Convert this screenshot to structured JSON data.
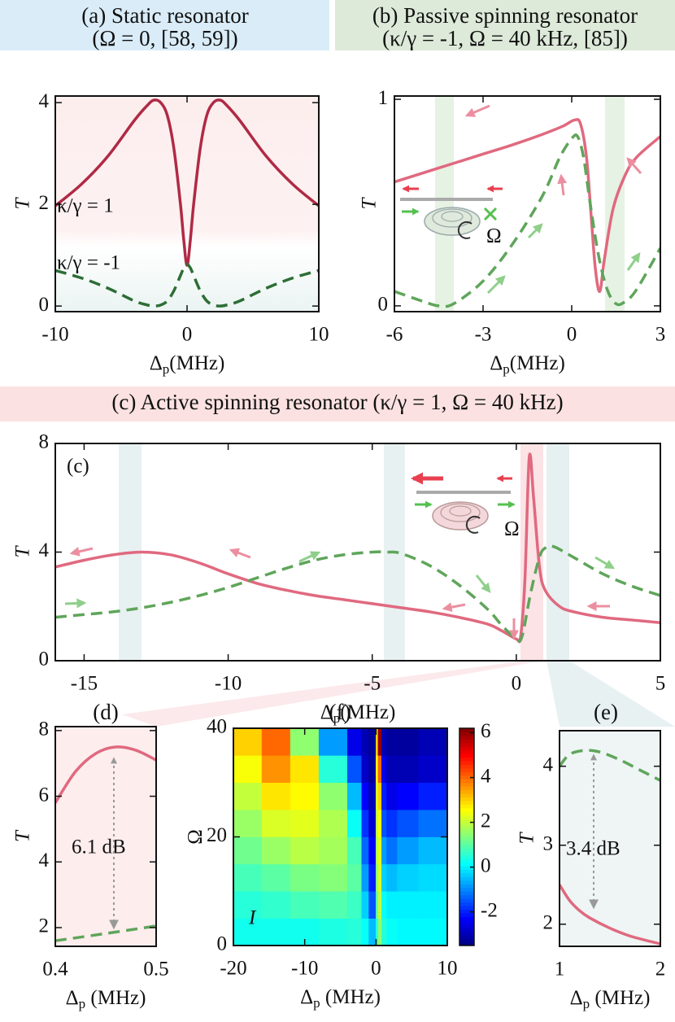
{
  "chart_data": [
    {
      "type": "line",
      "title": "(a) Static resonator",
      "subtitle": "(Ω = 0, [58, 59])",
      "xlabel": [
        "Δ",
        "p",
        "(MHz)"
      ],
      "ylabel": "T",
      "xlim": [
        -10,
        10
      ],
      "ylim": [
        -0.11,
        4.13
      ],
      "xticks": [
        -10,
        0,
        10
      ],
      "yticks": [
        0,
        2,
        4
      ],
      "annotations": [
        "κ/γ = 1",
        "κ/γ = -1"
      ],
      "series": [
        {
          "name": "κ/γ = 1",
          "color": "#b02a45",
          "line_style": "solid",
          "x": [
            -10,
            -8,
            -6,
            -4,
            -3,
            -2.5,
            -2,
            -1.5,
            -1,
            -0.5,
            -0.25,
            0,
            0.25,
            0.5,
            1,
            1.5,
            2,
            2.5,
            3,
            4,
            6,
            8,
            10
          ],
          "values": [
            1.97,
            2.4,
            2.95,
            3.65,
            3.95,
            4.05,
            4.0,
            3.75,
            3.1,
            2.0,
            1.3,
            0.8,
            1.3,
            2.0,
            3.1,
            3.75,
            4.0,
            4.05,
            3.95,
            3.65,
            2.95,
            2.4,
            1.97
          ]
        },
        {
          "name": "κ/γ = -1",
          "color": "#2d6e35",
          "line_style": "dashed",
          "x": [
            -10,
            -8,
            -6,
            -4,
            -3,
            -2.5,
            -2,
            -1.5,
            -1,
            -0.5,
            -0.25,
            0,
            0.25,
            0.5,
            1,
            1.5,
            2,
            2.5,
            3,
            4,
            6,
            8,
            10
          ],
          "values": [
            0.7,
            0.55,
            0.35,
            0.1,
            0.02,
            0.0,
            0.02,
            0.1,
            0.3,
            0.6,
            0.75,
            0.82,
            0.75,
            0.6,
            0.3,
            0.1,
            0.02,
            0.0,
            0.02,
            0.1,
            0.35,
            0.55,
            0.7
          ]
        }
      ]
    },
    {
      "type": "line",
      "title": "(b) Passive spinning resonator",
      "subtitle": "(κ/γ = -1, Ω = 40 kHz, [85])",
      "xlabel": [
        "Δ",
        "p",
        "(MHz)"
      ],
      "ylabel": "T",
      "inset_label": "Ω",
      "xlim": [
        -6,
        3
      ],
      "ylim": [
        -0.028,
        1.016
      ],
      "xticks": [
        -6,
        -3,
        0,
        3
      ],
      "yticks": [
        0,
        1
      ],
      "series": [
        {
          "color": "#e0697f",
          "line_style": "solid",
          "x": [
            -6,
            -5,
            -4,
            -3,
            -2,
            -1,
            -0.3,
            0.1,
            0.3,
            0.5,
            0.65,
            0.8,
            0.95,
            1.1,
            1.4,
            1.8,
            2.2,
            3
          ],
          "values": [
            0.6,
            0.645,
            0.69,
            0.735,
            0.78,
            0.83,
            0.87,
            0.9,
            0.88,
            0.72,
            0.45,
            0.18,
            0.07,
            0.22,
            0.47,
            0.63,
            0.72,
            0.82
          ]
        },
        {
          "color": "#5fa55a",
          "line_style": "dashed",
          "x": [
            -6,
            -5,
            -4.5,
            -4,
            -3,
            -2,
            -1,
            -0.4,
            0,
            0.2,
            0.4,
            0.6,
            0.9,
            1.2,
            1.5,
            1.8,
            2.2,
            3
          ],
          "values": [
            0.07,
            0.02,
            0.0,
            0.01,
            0.12,
            0.3,
            0.53,
            0.72,
            0.81,
            0.82,
            0.72,
            0.52,
            0.25,
            0.08,
            0.01,
            0.02,
            0.08,
            0.28
          ]
        }
      ]
    },
    {
      "type": "line",
      "title": "(c) Active spinning resonator (κ/γ = 1, Ω = 40 kHz)",
      "panel_label": "(c)",
      "xlabel": [
        "Δ",
        "p",
        "(MHz)"
      ],
      "ylabel": "T",
      "inset_label": "Ω",
      "xlim": [
        -16,
        5
      ],
      "ylim": [
        0,
        8
      ],
      "xticks": [
        -15,
        -10,
        -5,
        0,
        5
      ],
      "yticks": [
        0,
        4,
        8
      ],
      "series": [
        {
          "color": "#e0697f",
          "line_style": "solid",
          "x": [
            -16,
            -15,
            -14,
            -13,
            -12,
            -11,
            -10,
            -9,
            -8,
            -7,
            -6,
            -5,
            -4,
            -3,
            -2,
            -1,
            -0.5,
            0,
            0.15,
            0.3,
            0.45,
            0.6,
            0.8,
            1,
            1.5,
            2,
            3,
            4,
            5
          ],
          "values": [
            3.45,
            3.7,
            3.9,
            4.0,
            3.9,
            3.6,
            3.2,
            2.85,
            2.6,
            2.4,
            2.25,
            2.1,
            1.95,
            1.8,
            1.6,
            1.35,
            1.1,
            0.8,
            0.9,
            3.0,
            7.5,
            6.0,
            3.5,
            2.6,
            2.0,
            1.8,
            1.6,
            1.5,
            1.4
          ]
        },
        {
          "color": "#5fa55a",
          "line_style": "dashed",
          "x": [
            -16,
            -15,
            -14,
            -13,
            -12,
            -11,
            -10,
            -9,
            -8,
            -7,
            -6,
            -5,
            -4.5,
            -4,
            -3,
            -2,
            -1,
            -0.5,
            0,
            0.2,
            0.5,
            0.8,
            1,
            1.3,
            2,
            3,
            4,
            5
          ],
          "values": [
            1.6,
            1.7,
            1.8,
            1.95,
            2.15,
            2.4,
            2.7,
            3.05,
            3.4,
            3.7,
            3.9,
            4.0,
            4.0,
            3.95,
            3.5,
            2.8,
            1.9,
            1.3,
            0.8,
            0.9,
            2.5,
            3.8,
            4.15,
            4.2,
            3.8,
            3.2,
            2.75,
            2.4
          ]
        }
      ]
    },
    {
      "type": "line",
      "title": "(d)",
      "xlabel": [
        "Δ",
        "p",
        " (MHz)"
      ],
      "ylabel": "T",
      "xlim": [
        0.4,
        0.5
      ],
      "ylim": [
        1.43,
        8.12
      ],
      "xticks": [
        0.4,
        0.5
      ],
      "yticks": [
        2,
        4,
        6,
        8
      ],
      "annotations": [
        "6.1 dB"
      ],
      "series": [
        {
          "color": "#e0697f",
          "line_style": "solid",
          "x": [
            0.4,
            0.42,
            0.44,
            0.46,
            0.48,
            0.5
          ],
          "values": [
            5.8,
            6.75,
            7.3,
            7.5,
            7.4,
            7.1
          ]
        },
        {
          "color": "#5fa55a",
          "line_style": "dashed",
          "x": [
            0.4,
            0.45,
            0.5
          ],
          "values": [
            1.6,
            1.82,
            2.05
          ]
        }
      ]
    },
    {
      "type": "heatmap",
      "title": "(f)",
      "xlabel": [
        "Δ",
        "p",
        " (MHz)"
      ],
      "ylabel": "Ω",
      "xlim": [
        -20,
        10
      ],
      "ylim": [
        0,
        40
      ],
      "xticks": [
        -20,
        -10,
        0,
        10
      ],
      "yticks": [
        0,
        20,
        40
      ],
      "annotations": [
        "I"
      ],
      "x_edges": [
        -20,
        -16,
        -12,
        -8,
        -4,
        -2,
        -1,
        0,
        0.3,
        0.8,
        1.5,
        3,
        6,
        10
      ],
      "y_edges": [
        0,
        5,
        10,
        15,
        20,
        25,
        30,
        35,
        40
      ],
      "z": [
        [
          0.3,
          0.3,
          0.3,
          0.4,
          0.5,
          0.2,
          -0.5,
          0.5,
          1.5,
          0.5,
          0.2,
          0.1,
          0.1
        ],
        [
          0.5,
          0.6,
          0.8,
          0.9,
          0.7,
          -0.3,
          -1.5,
          1,
          2,
          0.2,
          0,
          0,
          0
        ],
        [
          0.8,
          1.0,
          1.3,
          1.4,
          1.0,
          -0.8,
          -2,
          1.5,
          2.2,
          -0.3,
          -0.5,
          -0.3,
          -0.2
        ],
        [
          1.2,
          1.6,
          1.9,
          1.7,
          0.8,
          -1.3,
          -2.3,
          1.8,
          2.3,
          -0.8,
          -1.2,
          -0.8,
          -0.5
        ],
        [
          1.6,
          2.2,
          2.3,
          1.8,
          0.2,
          -1.8,
          -2.7,
          2.0,
          2.5,
          -1.5,
          -1.8,
          -1.5,
          -1.2
        ],
        [
          2.0,
          2.8,
          2.6,
          1.5,
          -0.5,
          -2.3,
          -3,
          2.2,
          3,
          -2,
          -2.5,
          -2.3,
          -2
        ],
        [
          2.5,
          3.6,
          2.8,
          0.5,
          -1.5,
          -2.8,
          -3.2,
          2.5,
          4,
          -2.5,
          -3,
          -3,
          -2.8
        ],
        [
          3.0,
          4.0,
          1.5,
          -0.8,
          -2.5,
          -3,
          -3.3,
          3,
          6,
          -3,
          -3.2,
          -3.2,
          -3
        ]
      ],
      "colorbar": {
        "clim": [
          -3.5,
          6.2
        ],
        "ticks": [
          6,
          4,
          2,
          0,
          -2
        ]
      }
    },
    {
      "type": "line",
      "title": "(e)",
      "xlabel": [
        "Δ",
        "p",
        " (MHz)"
      ],
      "ylabel": "T",
      "xlim": [
        1,
        2
      ],
      "ylim": [
        1.72,
        4.45
      ],
      "xticks": [
        1,
        2
      ],
      "yticks": [
        2,
        3,
        4
      ],
      "annotations": [
        "3.4 dB"
      ],
      "series": [
        {
          "color": "#5fa55a",
          "line_style": "dashed",
          "x": [
            1,
            1.1,
            1.25,
            1.4,
            1.6,
            1.8,
            2
          ],
          "values": [
            4.0,
            4.15,
            4.2,
            4.18,
            4.08,
            3.95,
            3.82
          ]
        },
        {
          "color": "#e0697f",
          "line_style": "solid",
          "x": [
            1,
            1.1,
            1.2,
            1.3,
            1.5,
            1.7,
            2
          ],
          "values": [
            2.5,
            2.3,
            2.17,
            2.08,
            1.95,
            1.85,
            1.75
          ]
        }
      ]
    }
  ]
}
